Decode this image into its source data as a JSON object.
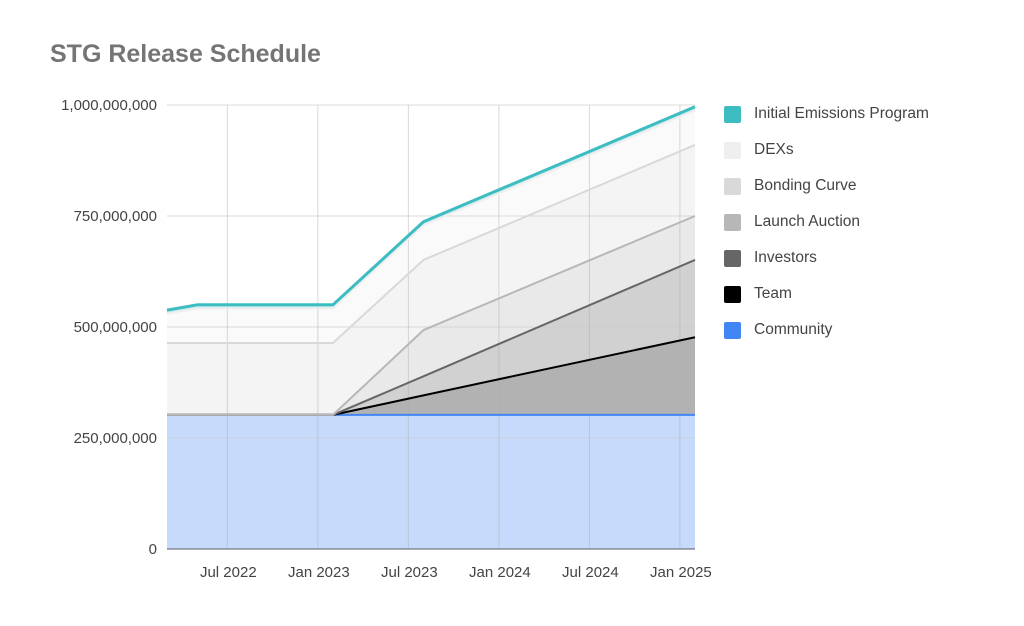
{
  "chart_data": {
    "type": "area",
    "stacked": true,
    "title": "STG Release Schedule",
    "xlabel": "",
    "ylabel": "",
    "ylim": [
      0,
      1000000000
    ],
    "yticks": [
      0,
      250000000,
      500000000,
      750000000,
      1000000000
    ],
    "ytick_labels": [
      "0",
      "250,000,000",
      "500,000,000",
      "750,000,000",
      "1,000,000,000"
    ],
    "xlim": [
      "2022-03",
      "2025-02"
    ],
    "xticks": [
      "2022-07",
      "2023-01",
      "2023-07",
      "2024-01",
      "2024-07",
      "2025-01"
    ],
    "xtick_labels": [
      "Jul 2022",
      "Jan 2023",
      "Jul 2023",
      "Jan 2024",
      "Jul 2024",
      "Jan 2025"
    ],
    "grid": true,
    "legend_position": "right",
    "x": [
      "2022-03",
      "2022-05",
      "2023-02",
      "2023-08",
      "2025-02"
    ],
    "series": [
      {
        "name": "Community",
        "color": "#4285f4",
        "values": [
          302000000,
          302000000,
          302000000,
          302000000,
          302000000
        ]
      },
      {
        "name": "Team",
        "color": "#000000",
        "values": [
          0,
          0,
          0,
          44000000,
          175000000
        ]
      },
      {
        "name": "Investors",
        "color": "#666666",
        "values": [
          0,
          0,
          0,
          43000000,
          174000000
        ]
      },
      {
        "name": "Launch Auction",
        "color": "#b7b7b7",
        "values": [
          0,
          0,
          0,
          104000000,
          99000000
        ]
      },
      {
        "name": "Bonding Curve",
        "color": "#d9d9d9",
        "values": [
          162000000,
          162000000,
          162000000,
          158000000,
          160000000
        ]
      },
      {
        "name": "DEXs",
        "color": "#efefef",
        "values": [
          66000000,
          78000000,
          78000000,
          78000000,
          78000000
        ]
      },
      {
        "name": "Initial Emissions Program",
        "color": "#3dbdc2",
        "values": [
          8000000,
          8000000,
          8000000,
          8000000,
          8000000
        ]
      }
    ]
  }
}
